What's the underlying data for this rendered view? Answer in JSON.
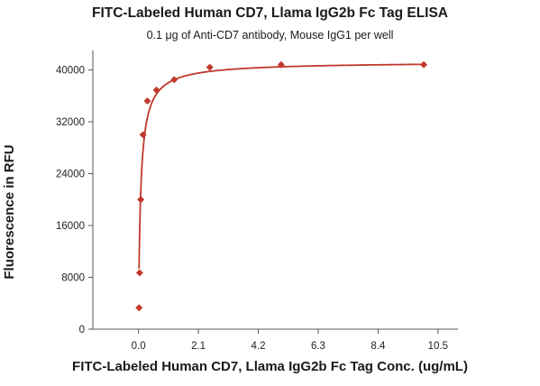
{
  "chart_data": {
    "type": "scatter",
    "title": "FITC-Labeled Human CD7, Llama IgG2b Fc Tag ELISA",
    "subtitle": "0.1 μg of Anti-CD7 antibody, Mouse IgG1 per well",
    "xlabel": "FITC-Labeled Human CD7, Llama IgG2b Fc Tag Conc. (ug/mL)",
    "ylabel": "Fluorescence in RFU",
    "xlim": [
      -1.6,
      11.2
    ],
    "ylim": [
      0,
      43000
    ],
    "xticks": [
      "0.0",
      "2.1",
      "4.2",
      "6.3",
      "8.4",
      "10.5"
    ],
    "yticks": [
      "0",
      "8000",
      "16000",
      "24000",
      "32000",
      "40000"
    ],
    "grid": false,
    "colors": {
      "series": "#c0392b",
      "axis": "#555555"
    },
    "series": [
      {
        "x": [
          0.02,
          0.04,
          0.08,
          0.16,
          0.31,
          0.63,
          1.25,
          2.5,
          5.0,
          10.0
        ],
        "values": [
          3300,
          8700,
          20000,
          30000,
          35200,
          36900,
          38500,
          40400,
          40800,
          40800
        ]
      }
    ],
    "fit_curve": {
      "bottom": 0,
      "top": 41300,
      "ec50": 0.075,
      "hill": 0.93
    }
  }
}
